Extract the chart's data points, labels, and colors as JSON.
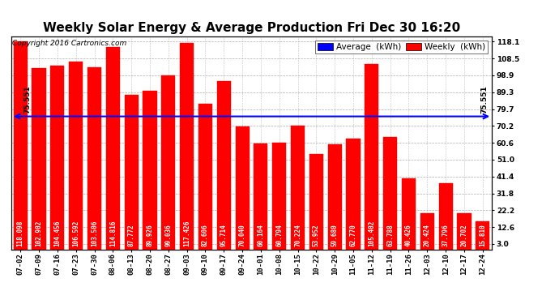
{
  "title": "Weekly Solar Energy & Average Production Fri Dec 30 16:20",
  "copyright": "Copyright 2016 Cartronics.com",
  "legend_average": "Average  (kWh)",
  "legend_weekly": "Weekly  (kWh)",
  "average_value": 75.551,
  "categories": [
    "07-02",
    "07-09",
    "07-16",
    "07-23",
    "07-30",
    "08-06",
    "08-13",
    "08-20",
    "08-27",
    "09-03",
    "09-10",
    "09-17",
    "09-24",
    "10-01",
    "10-08",
    "10-15",
    "10-22",
    "10-29",
    "11-05",
    "11-12",
    "11-19",
    "11-26",
    "12-03",
    "12-10",
    "12-17",
    "12-24"
  ],
  "values": [
    118.098,
    102.902,
    104.456,
    106.592,
    103.506,
    114.816,
    87.772,
    89.926,
    99.036,
    117.426,
    82.606,
    95.714,
    70.04,
    60.164,
    60.794,
    70.224,
    53.952,
    59.68,
    62.77,
    105.402,
    63.788,
    40.426,
    20.424,
    37.796,
    20.702,
    15.81
  ],
  "bar_color": "#ff0000",
  "avg_line_color": "#0000ff",
  "background_color": "#ffffff",
  "grid_color": "#999999",
  "yticks_right": [
    3.0,
    12.6,
    22.2,
    31.8,
    41.4,
    51.0,
    60.6,
    70.2,
    79.7,
    89.3,
    98.9,
    108.5,
    118.1
  ],
  "ylim_min": 0,
  "ylim_max": 121,
  "title_fontsize": 11,
  "bar_label_fontsize": 5.5,
  "axis_fontsize": 6.5,
  "copyright_fontsize": 6.5,
  "avg_label_fontsize": 6.5,
  "legend_fontsize": 7.5
}
